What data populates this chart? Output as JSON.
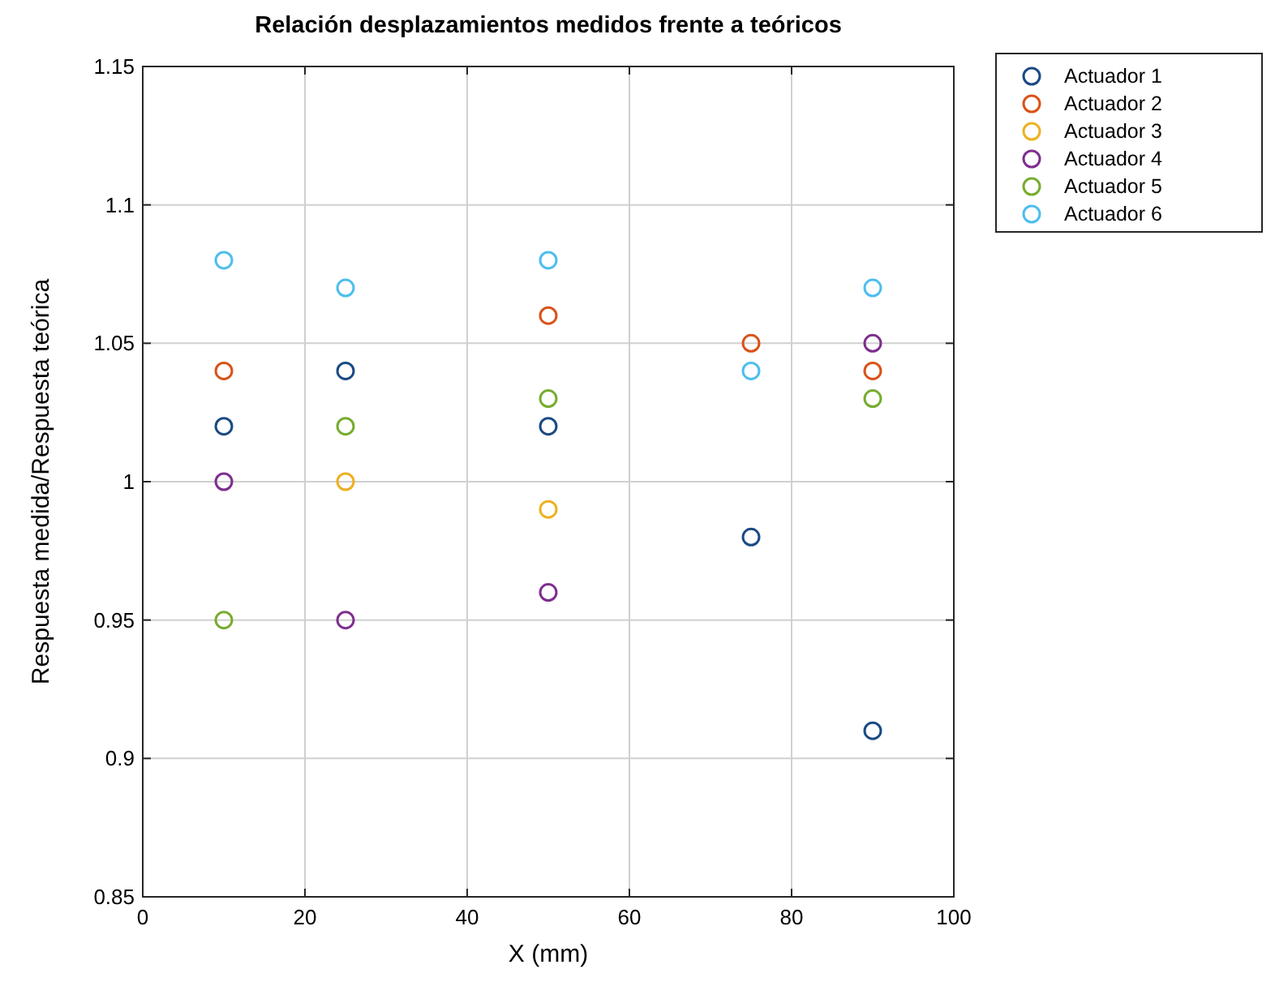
{
  "chart_data": {
    "type": "scatter",
    "title": "Relación desplazamientos medidos frente a teóricos",
    "xlabel": "X (mm)",
    "ylabel": "Respuesta medida/Respuesta teórica",
    "xlim": [
      0,
      100
    ],
    "xticks": [
      0,
      20,
      40,
      60,
      80,
      100
    ],
    "ylim": [
      0.85,
      1.15
    ],
    "yticks": [
      0.85,
      0.9,
      0.95,
      1,
      1.05,
      1.1,
      1.15
    ],
    "grid": true,
    "legend": "top right",
    "marker": "circle",
    "series": [
      {
        "name": "Actuador 1",
        "color": "#1a4a85",
        "x": [
          10,
          25,
          50,
          75,
          90
        ],
        "values": [
          1.02,
          1.04,
          1.02,
          0.98,
          0.91
        ]
      },
      {
        "name": "Actuador 2",
        "color": "#d95319",
        "x": [
          10,
          50,
          75,
          90
        ],
        "values": [
          1.04,
          1.06,
          1.05,
          1.04
        ]
      },
      {
        "name": "Actuador 3",
        "color": "#edb120",
        "x": [
          25,
          50
        ],
        "values": [
          1.0,
          0.99
        ]
      },
      {
        "name": "Actuador 4",
        "color": "#7e2f8e",
        "x": [
          10,
          25,
          50,
          90
        ],
        "values": [
          1.0,
          0.95,
          0.96,
          1.05
        ]
      },
      {
        "name": "Actuador 5",
        "color": "#77ac30",
        "x": [
          10,
          25,
          50,
          90
        ],
        "values": [
          0.95,
          1.02,
          1.03,
          1.03
        ]
      },
      {
        "name": "Actuador 6",
        "color": "#4dbeee",
        "x": [
          10,
          25,
          50,
          75,
          90
        ],
        "values": [
          1.08,
          1.07,
          1.08,
          1.04,
          1.07
        ]
      }
    ]
  }
}
